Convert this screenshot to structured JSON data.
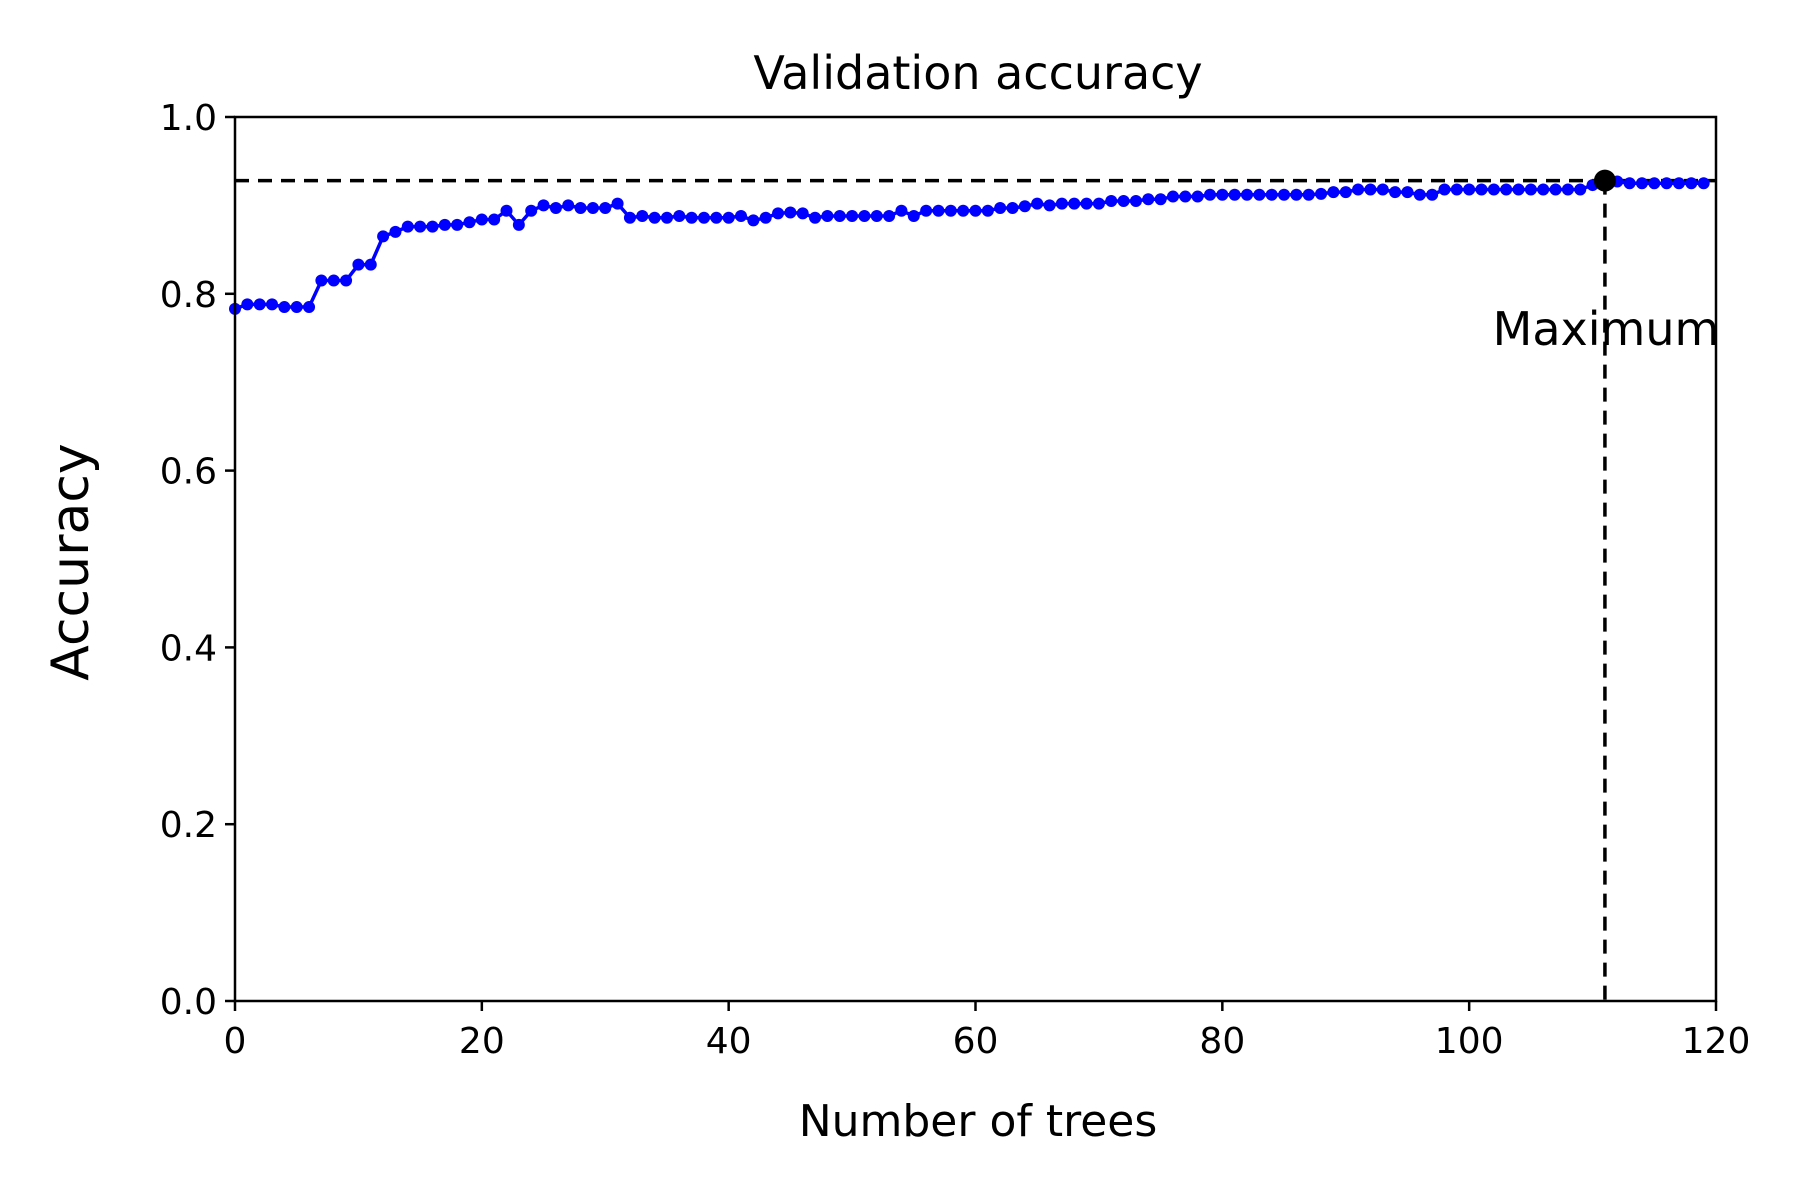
{
  "chart_data": {
    "type": "line",
    "title": "Validation accuracy",
    "xlabel": "Number of trees",
    "ylabel": "Accuracy",
    "xlim": [
      0,
      120
    ],
    "ylim": [
      0.0,
      1.0
    ],
    "xticks": [
      0,
      20,
      40,
      60,
      80,
      100,
      120
    ],
    "yticks": [
      0.0,
      0.2,
      0.4,
      0.6,
      0.8,
      1.0
    ],
    "xtick_labels": [
      "0",
      "20",
      "40",
      "60",
      "80",
      "100",
      "120"
    ],
    "ytick_labels": [
      "0.0",
      "0.2",
      "0.4",
      "0.6",
      "0.8",
      "1.0"
    ],
    "grid": false,
    "series": [
      {
        "color": "#0000ff",
        "marker": "circle",
        "x": [
          0,
          1,
          2,
          3,
          4,
          5,
          6,
          7,
          8,
          9,
          10,
          11,
          12,
          13,
          14,
          15,
          16,
          17,
          18,
          19,
          20,
          21,
          22,
          23,
          24,
          25,
          26,
          27,
          28,
          29,
          30,
          31,
          32,
          33,
          34,
          35,
          36,
          37,
          38,
          39,
          40,
          41,
          42,
          43,
          44,
          45,
          46,
          47,
          48,
          49,
          50,
          51,
          52,
          53,
          54,
          55,
          56,
          57,
          58,
          59,
          60,
          61,
          62,
          63,
          64,
          65,
          66,
          67,
          68,
          69,
          70,
          71,
          72,
          73,
          74,
          75,
          76,
          77,
          78,
          79,
          80,
          81,
          82,
          83,
          84,
          85,
          86,
          87,
          88,
          89,
          90,
          91,
          92,
          93,
          94,
          95,
          96,
          97,
          98,
          99,
          100,
          101,
          102,
          103,
          104,
          105,
          106,
          107,
          108,
          109,
          110,
          111,
          112,
          113,
          114,
          115,
          116,
          117,
          118,
          119
        ],
        "values": [
          0.783,
          0.788,
          0.788,
          0.788,
          0.785,
          0.785,
          0.785,
          0.815,
          0.815,
          0.815,
          0.833,
          0.833,
          0.865,
          0.87,
          0.876,
          0.876,
          0.876,
          0.878,
          0.878,
          0.881,
          0.884,
          0.884,
          0.894,
          0.878,
          0.894,
          0.9,
          0.897,
          0.9,
          0.897,
          0.897,
          0.897,
          0.902,
          0.886,
          0.888,
          0.886,
          0.886,
          0.888,
          0.886,
          0.886,
          0.886,
          0.886,
          0.888,
          0.883,
          0.886,
          0.891,
          0.892,
          0.891,
          0.886,
          0.888,
          0.888,
          0.888,
          0.888,
          0.888,
          0.888,
          0.894,
          0.888,
          0.894,
          0.894,
          0.894,
          0.894,
          0.894,
          0.894,
          0.897,
          0.897,
          0.899,
          0.902,
          0.9,
          0.902,
          0.902,
          0.902,
          0.902,
          0.905,
          0.905,
          0.905,
          0.907,
          0.907,
          0.91,
          0.91,
          0.91,
          0.912,
          0.912,
          0.912,
          0.912,
          0.912,
          0.912,
          0.912,
          0.912,
          0.912,
          0.913,
          0.915,
          0.915,
          0.918,
          0.918,
          0.918,
          0.915,
          0.915,
          0.912,
          0.912,
          0.918,
          0.918,
          0.918,
          0.918,
          0.918,
          0.918,
          0.918,
          0.918,
          0.918,
          0.918,
          0.918,
          0.918,
          0.923,
          0.928,
          0.927,
          0.925,
          0.925,
          0.925,
          0.925,
          0.925,
          0.925,
          0.925
        ]
      }
    ],
    "maximum": {
      "x": 111,
      "y": 0.928,
      "label": "Maximum"
    },
    "reference_line_style": "dashed",
    "reference_line_color": "#000000"
  }
}
